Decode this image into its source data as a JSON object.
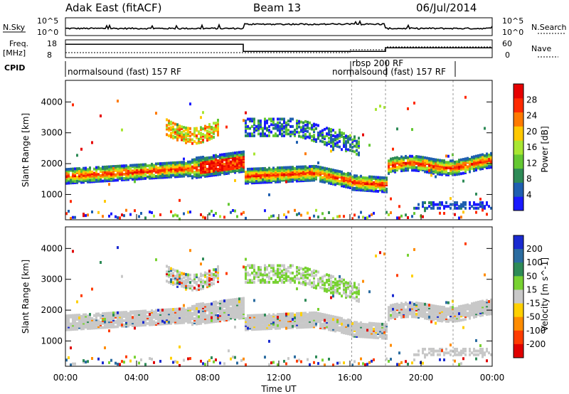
{
  "header": {
    "title_left": "Adak East (fitACF)",
    "title_center": "Beam 13",
    "title_right": "06/Jul/2014"
  },
  "top_panels": {
    "nsky_label": "N.Sky",
    "nsearch_label": "N.Search",
    "left_ticks": [
      "10^5",
      "10^0"
    ],
    "right_ticks": [
      "10^5",
      "10^0"
    ],
    "freq_label_1": "Freq.",
    "freq_label_2": "[MHz]",
    "freq_ticks": [
      "18",
      "8"
    ],
    "nave_label": "Nave",
    "nave_ticks": [
      "60",
      "0"
    ],
    "cpid_label": "CPID",
    "cpid_entries": [
      "normalsound (fast) 157 RF",
      "rbsp 200 RF",
      "normalsound (fast) 157 RF"
    ]
  },
  "colors": {
    "power_scale": [
      "#1a1aff",
      "#1f5fb0",
      "#2e8b57",
      "#64c832",
      "#a8e632",
      "#ffc800",
      "#ff7a00",
      "#ff2a00",
      "#e60000"
    ],
    "velocity_scale": [
      "#1a2ad0",
      "#2b6ca0",
      "#2e8b57",
      "#78d232",
      "#c8c8c8",
      "#ffd000",
      "#ff8c00",
      "#ff3c00",
      "#e00000"
    ]
  },
  "chart_data": [
    {
      "type": "heatmap",
      "name": "power",
      "ylabel": "Slant Range [km]",
      "y_ticks": [
        1000,
        2000,
        3000,
        4000
      ],
      "ylim": [
        180,
        4700
      ],
      "colorbar_label": "Power [dB]",
      "colorbar_ticks": [
        4,
        8,
        12,
        16,
        20,
        24,
        28
      ],
      "colorbar_range": [
        0,
        32
      ]
    },
    {
      "type": "heatmap",
      "name": "velocity",
      "xlabel": "Time UT",
      "ylabel": "Slant Range [km]",
      "x_ticks": [
        "00:00",
        "04:00",
        "08:00",
        "12:00",
        "16:00",
        "20:00",
        "00:00"
      ],
      "xlim_hours": [
        0,
        24
      ],
      "y_ticks": [
        1000,
        2000,
        3000,
        4000
      ],
      "ylim": [
        180,
        4700
      ],
      "colorbar_label": "Velocity [m s^-1]",
      "colorbar_ticks": [
        "200",
        "100",
        "50",
        "15",
        "-15",
        "-50",
        "-100",
        "-200"
      ]
    }
  ],
  "cpid_changes_hours": [
    16.1,
    18.0,
    21.8
  ],
  "freq_levels": [
    {
      "start": 0,
      "end": 10,
      "level": 0.75
    },
    {
      "start": 10,
      "end": 18,
      "level": 0.35
    },
    {
      "start": 18,
      "end": 24,
      "level": 0.55
    }
  ]
}
